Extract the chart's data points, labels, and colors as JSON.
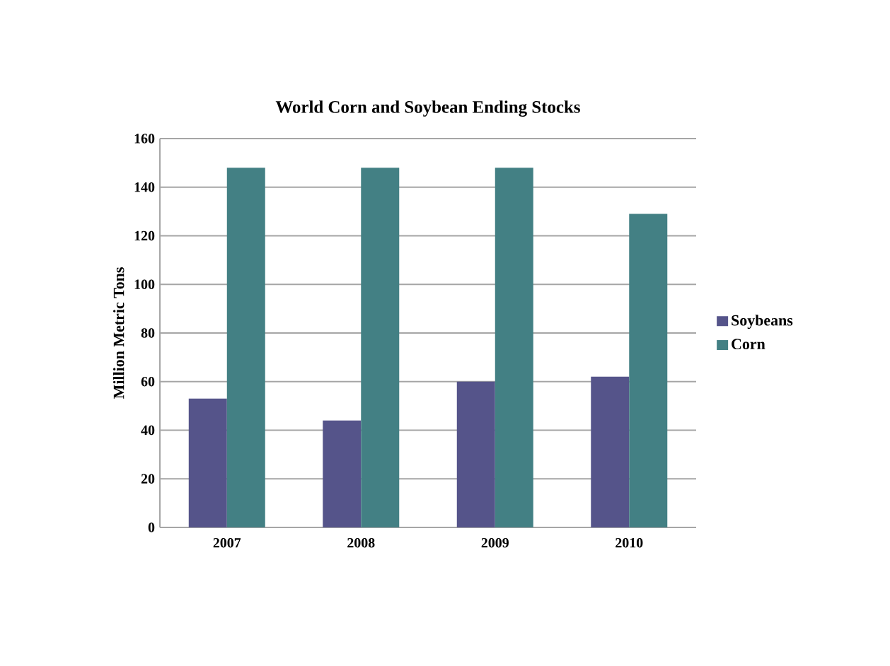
{
  "chart_data": {
    "type": "bar",
    "title": "World Corn and Soybean Ending Stocks",
    "ylabel": "Million Metric Tons",
    "categories": [
      "2007",
      "2008",
      "2009",
      "2010"
    ],
    "series": [
      {
        "name": "Soybeans",
        "color": "#55548a",
        "values": [
          53,
          44,
          60,
          62
        ]
      },
      {
        "name": "Corn",
        "color": "#438084",
        "values": [
          148,
          148,
          148,
          129
        ]
      }
    ],
    "ylim": [
      0,
      160
    ],
    "yticks": [
      0,
      20,
      40,
      60,
      80,
      100,
      120,
      140,
      160
    ],
    "grid": "y",
    "legend": "right"
  }
}
